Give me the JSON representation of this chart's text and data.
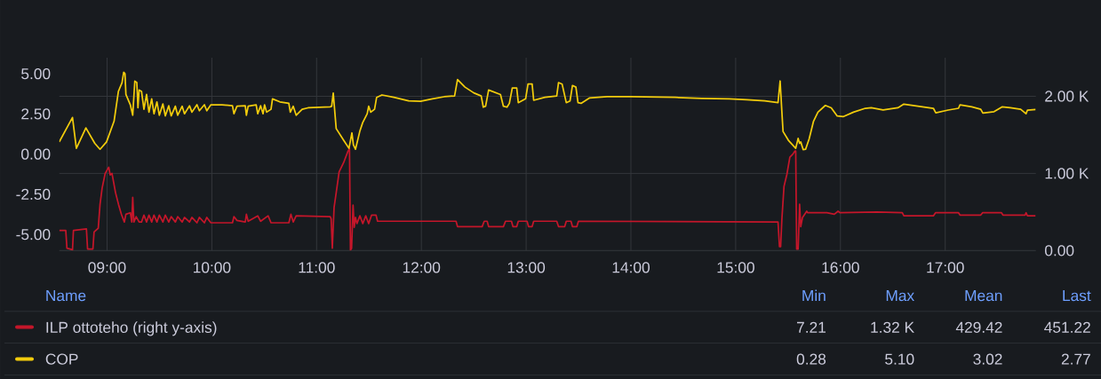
{
  "chart_data": {
    "type": "line",
    "legend": "bottom",
    "legend_title": "Name",
    "grid": true,
    "annotations": [
      "Min",
      "Max",
      "Mean",
      "Last",
      "7.21",
      "1.32 K",
      "429.42",
      "451.22",
      "0.28",
      "5.10",
      "3.02",
      "2.77"
    ],
    "xlim": [
      8.544,
      17.865
    ],
    "xticks": [
      {
        "value": 9,
        "label": "09:00"
      },
      {
        "value": 10,
        "label": "10:00"
      },
      {
        "value": 11,
        "label": "11:00"
      },
      {
        "value": 12,
        "label": "12:00"
      },
      {
        "value": 13,
        "label": "13:00"
      },
      {
        "value": 14,
        "label": "14:00"
      },
      {
        "value": 15,
        "label": "15:00"
      },
      {
        "value": 16,
        "label": "16:00"
      },
      {
        "value": 17,
        "label": "17:00"
      }
    ],
    "ylim": [
      -6,
      6
    ],
    "yticks": [
      {
        "value": -5,
        "label": "-5.00"
      },
      {
        "value": -2.5,
        "label": "-2.50"
      },
      {
        "value": 0,
        "label": "0.00"
      },
      {
        "value": 2.5,
        "label": "2.50"
      },
      {
        "value": 5,
        "label": "5.00"
      }
    ],
    "y2lim": [
      0,
      2500
    ],
    "y2ticks": [
      {
        "value": 0,
        "label": "0.00"
      },
      {
        "value": 1000,
        "label": "1.00 K"
      },
      {
        "value": 2000,
        "label": "2.00 K"
      }
    ],
    "series": [
      {
        "name": "ILP ottoteho (right y-axis)",
        "color": "#c4162a",
        "axis": "y2",
        "x": [
          8.544,
          8.606,
          8.617,
          8.67,
          8.679,
          8.803,
          8.814,
          8.865,
          8.876,
          8.916,
          8.933,
          8.953,
          8.982,
          9.016,
          9.03,
          9.047,
          9.081,
          9.109,
          9.137,
          9.165,
          9.18,
          9.222,
          9.236,
          9.245,
          9.256,
          9.278,
          9.306,
          9.329,
          9.352,
          9.377,
          9.4,
          9.426,
          9.448,
          9.476,
          9.499,
          9.533,
          9.556,
          9.589,
          9.612,
          9.652,
          9.674,
          9.717,
          9.739,
          9.787,
          9.81,
          9.858,
          9.881,
          9.929,
          9.952,
          9.991,
          10.197,
          10.211,
          10.24,
          10.319,
          10.33,
          10.347,
          10.438,
          10.466,
          10.537,
          10.565,
          10.735,
          10.755,
          10.777,
          10.805,
          11.13,
          11.139,
          11.15,
          11.167,
          11.187,
          11.215,
          11.258,
          11.3,
          11.314,
          11.323,
          11.334,
          11.348,
          11.359,
          11.371,
          11.385,
          11.413,
          11.441,
          11.469,
          11.497,
          11.525,
          11.567,
          11.582,
          12.331,
          12.345,
          12.58,
          12.6,
          12.628,
          12.642,
          12.783,
          12.803,
          12.86,
          12.874,
          12.91,
          12.925,
          13.009,
          13.023,
          13.057,
          13.072,
          13.292,
          13.309,
          13.368,
          13.383,
          13.428,
          13.442,
          13.484,
          13.499,
          15.404,
          15.418,
          15.429,
          15.441,
          15.461,
          15.489,
          15.517,
          15.546,
          15.565,
          15.573,
          15.582,
          15.596,
          15.61,
          15.621,
          15.638,
          15.678,
          15.686,
          15.87,
          15.941,
          15.977,
          15.997,
          16.35,
          16.59,
          16.605,
          16.887,
          16.907,
          17.127,
          17.141,
          17.339,
          17.356,
          17.537,
          17.551,
          17.763,
          17.771,
          17.785,
          17.862
        ],
        "values": [
          260,
          260,
          30,
          10,
          260,
          280,
          20,
          20,
          240,
          290,
          600,
          810,
          1000,
          1080,
          980,
          1000,
          750,
          600,
          470,
          370,
          470,
          490,
          370,
          690,
          370,
          440,
          370,
          370,
          460,
          370,
          460,
          370,
          460,
          370,
          460,
          370,
          460,
          370,
          440,
          370,
          440,
          370,
          430,
          370,
          430,
          360,
          430,
          360,
          430,
          360,
          360,
          440,
          390,
          370,
          470,
          380,
          450,
          380,
          450,
          360,
          360,
          470,
          370,
          450,
          440,
          410,
          30,
          560,
          750,
          1020,
          1140,
          1290,
          1320,
          7.21,
          30,
          590,
          300,
          430,
          350,
          450,
          350,
          450,
          350,
          460,
          460,
          380,
          380,
          310,
          310,
          380,
          380,
          310,
          310,
          380,
          380,
          310,
          310,
          380,
          380,
          310,
          310,
          380,
          380,
          310,
          310,
          380,
          380,
          310,
          310,
          380,
          370,
          50,
          50,
          410,
          830,
          990,
          1210,
          1250,
          1290,
          1290,
          20,
          20,
          600,
          310,
          430,
          510,
          490,
          490,
          470,
          510,
          490,
          500,
          490,
          450,
          450,
          490,
          490,
          460,
          460,
          490,
          490,
          460,
          460,
          490,
          450,
          451.22
        ]
      },
      {
        "name": "COP",
        "color": "#f2cc0c",
        "x": [
          8.544,
          8.67,
          8.707,
          8.798,
          8.883,
          8.933,
          8.995,
          9.067,
          9.108,
          9.143,
          9.159,
          9.171,
          9.18,
          9.222,
          9.245,
          9.265,
          9.284,
          9.295,
          9.306,
          9.329,
          9.352,
          9.377,
          9.4,
          9.426,
          9.448,
          9.476,
          9.499,
          9.533,
          9.556,
          9.589,
          9.612,
          9.652,
          9.674,
          9.717,
          9.739,
          9.787,
          9.81,
          9.858,
          9.881,
          9.929,
          9.952,
          9.991,
          10.098,
          10.197,
          10.211,
          10.24,
          10.319,
          10.33,
          10.347,
          10.423,
          10.438,
          10.466,
          10.489,
          10.503,
          10.523,
          10.565,
          10.579,
          10.65,
          10.735,
          10.749,
          10.777,
          10.805,
          10.862,
          10.918,
          11.13,
          11.144,
          11.159,
          11.187,
          11.258,
          11.309,
          11.337,
          11.351,
          11.371,
          11.412,
          11.44,
          11.483,
          11.497,
          11.517,
          11.553,
          11.573,
          11.624,
          11.737,
          11.878,
          11.992,
          12.105,
          12.218,
          12.317,
          12.345,
          12.416,
          12.5,
          12.571,
          12.591,
          12.613,
          12.642,
          12.755,
          12.783,
          12.817,
          12.84,
          12.868,
          12.91,
          12.925,
          12.995,
          13.018,
          13.057,
          13.072,
          13.179,
          13.292,
          13.309,
          13.343,
          13.383,
          13.419,
          13.442,
          13.475,
          13.495,
          13.524,
          13.603,
          13.773,
          13.999,
          14.423,
          14.677,
          14.938,
          15.107,
          15.277,
          15.404,
          15.424,
          15.441,
          15.452,
          15.503,
          15.573,
          15.596,
          15.61,
          15.621,
          15.644,
          15.667,
          15.701,
          15.743,
          15.785,
          15.856,
          15.912,
          15.969,
          16.025,
          16.124,
          16.237,
          16.294,
          16.407,
          16.548,
          16.605,
          16.746,
          16.887,
          16.91,
          17.028,
          17.127,
          17.141,
          17.254,
          17.339,
          17.359,
          17.466,
          17.542,
          17.621,
          17.72,
          17.771,
          17.785,
          17.862
        ],
        "values": [
          0.76,
          2.28,
          0.36,
          1.63,
          0.67,
          0.3,
          0.76,
          2.05,
          3.9,
          4.45,
          5.1,
          5.0,
          3.71,
          3.07,
          2.42,
          4.54,
          4.45,
          2.88,
          3.99,
          3.9,
          2.79,
          3.71,
          2.61,
          3.44,
          2.51,
          3.25,
          2.42,
          3.12,
          2.38,
          3.01,
          2.38,
          2.98,
          2.42,
          2.98,
          2.51,
          3.01,
          2.61,
          3.07,
          2.7,
          3.07,
          2.7,
          3.07,
          3.07,
          3.01,
          2.51,
          2.98,
          3.01,
          2.42,
          2.98,
          3.07,
          2.51,
          3.01,
          2.51,
          3.07,
          2.61,
          2.79,
          3.44,
          3.25,
          3.16,
          2.61,
          2.98,
          2.42,
          2.79,
          2.88,
          2.94,
          2.98,
          3.8,
          1.59,
          0.86,
          0.36,
          1.32,
          0.58,
          0.3,
          1.41,
          1.96,
          2.51,
          2.98,
          2.61,
          2.79,
          3.53,
          3.68,
          3.53,
          3.31,
          3.29,
          3.44,
          3.57,
          3.62,
          4.64,
          4.17,
          3.81,
          3.62,
          2.92,
          2.98,
          3.99,
          3.71,
          2.98,
          2.92,
          3.16,
          4.12,
          4.12,
          3.2,
          3.44,
          4.36,
          4.36,
          3.35,
          3.53,
          3.62,
          4.45,
          4.36,
          3.2,
          3.31,
          4.27,
          4.17,
          3.2,
          3.16,
          3.49,
          3.58,
          3.58,
          3.53,
          3.47,
          3.44,
          3.38,
          3.31,
          3.2,
          4.55,
          2.61,
          1.41,
          0.86,
          0.36,
          0.98,
          0.67,
          0.76,
          0.28,
          0.3,
          0.95,
          2.05,
          2.61,
          3.03,
          2.88,
          2.37,
          2.33,
          2.61,
          2.85,
          2.88,
          2.75,
          2.88,
          3.11,
          2.98,
          2.85,
          2.57,
          2.74,
          2.85,
          3.07,
          2.94,
          2.79,
          2.55,
          2.64,
          2.94,
          2.88,
          2.79,
          2.51,
          2.74,
          2.77
        ]
      }
    ]
  }
}
